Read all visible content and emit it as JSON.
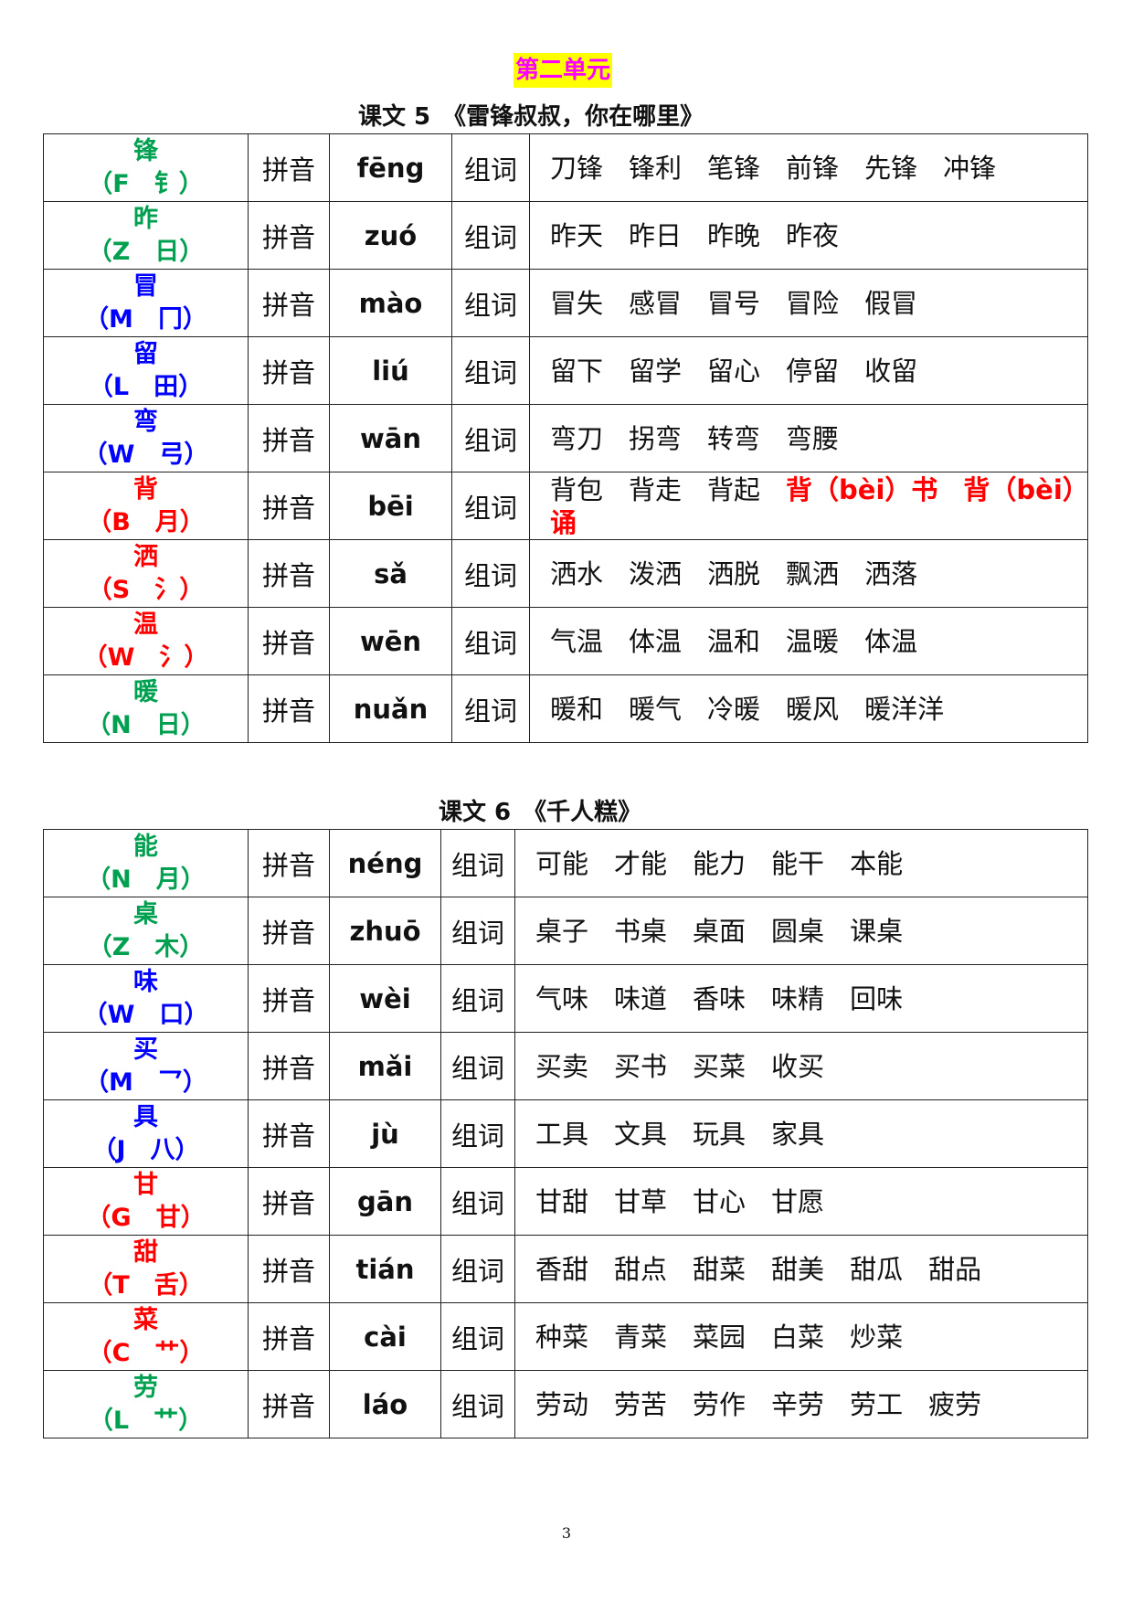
{
  "unit_title": "第二单元",
  "lessons": [
    {
      "title": "课文 5　《雷锋叔叔，你在哪里》",
      "rows": [
        {
          "char": "锋",
          "hint": "（F　钅）",
          "color": "#00a050",
          "pinyin_label": "拼音",
          "pinyin": "fēng",
          "words_label": "组词",
          "words": [
            "刀锋",
            "锋利",
            "笔锋",
            "前锋",
            "先锋",
            "冲锋"
          ]
        },
        {
          "char": "昨",
          "hint": "（Z　日）",
          "color": "#00a050",
          "pinyin_label": "拼音",
          "pinyin": "zuó",
          "words_label": "组词",
          "words": [
            "昨天",
            "昨日",
            "昨晚",
            "昨夜"
          ]
        },
        {
          "char": "冒",
          "hint": "（M　冂）",
          "color": "#0000ff",
          "pinyin_label": "拼音",
          "pinyin": "mào",
          "words_label": "组词",
          "words": [
            "冒失",
            "感冒",
            "冒号",
            "冒险",
            "假冒"
          ]
        },
        {
          "char": "留",
          "hint": "（L　田）",
          "color": "#0000ff",
          "pinyin_label": "拼音",
          "pinyin": "liú",
          "words_label": "组词",
          "words": [
            "留下",
            "留学",
            "留心",
            "停留",
            "收留"
          ]
        },
        {
          "char": "弯",
          "hint": "（W　弓）",
          "color": "#0000ff",
          "pinyin_label": "拼音",
          "pinyin": "wān",
          "words_label": "组词",
          "words": [
            "弯刀",
            "拐弯",
            "转弯",
            "弯腰"
          ]
        },
        {
          "char": "背",
          "hint": "（B　月）",
          "color": "#ff0000",
          "pinyin_label": "拼音",
          "pinyin": "bēi",
          "words_label": "组词",
          "words": [
            "背包",
            "背走",
            "背起"
          ],
          "extra_words": [
            "背（bèi）书",
            "背（bèi）诵"
          ]
        },
        {
          "char": "洒",
          "hint": "（S　氵）",
          "color": "#ff0000",
          "pinyin_label": "拼音",
          "pinyin": "sǎ",
          "words_label": "组词",
          "words": [
            "洒水",
            "泼洒",
            "洒脱",
            "飘洒",
            "洒落"
          ]
        },
        {
          "char": "温",
          "hint": "（W　氵）",
          "color": "#ff0000",
          "pinyin_label": "拼音",
          "pinyin": "wēn",
          "words_label": "组词",
          "words": [
            "气温",
            "体温",
            "温和",
            "温暖",
            "体温"
          ]
        },
        {
          "char": "暖",
          "hint": "（N　日）",
          "color": "#00a050",
          "pinyin_label": "拼音",
          "pinyin": "nuǎn",
          "words_label": "组词",
          "words": [
            "暖和",
            "暖气",
            "冷暖",
            "暖风",
            "暖洋洋"
          ]
        }
      ]
    },
    {
      "title": "课文 6　《千人糕》",
      "rows": [
        {
          "char": "能",
          "hint": "（N　月）",
          "color": "#00a050",
          "pinyin_label": "拼音",
          "pinyin": "néng",
          "words_label": "组词",
          "words": [
            "可能",
            "才能",
            "能力",
            "能干",
            "本能"
          ]
        },
        {
          "char": "桌",
          "hint": "（Z　木）",
          "color": "#00a050",
          "pinyin_label": "拼音",
          "pinyin": "zhuō",
          "words_label": "组词",
          "words": [
            "桌子",
            "书桌",
            "桌面",
            "圆桌",
            "课桌"
          ]
        },
        {
          "char": "味",
          "hint": "（W　口）",
          "color": "#0000ff",
          "pinyin_label": "拼音",
          "pinyin": "wèi",
          "words_label": "组词",
          "words": [
            "气味",
            "味道",
            "香味",
            "味精",
            "回味"
          ]
        },
        {
          "char": "买",
          "hint": "（M　乛）",
          "color": "#0000ff",
          "pinyin_label": "拼音",
          "pinyin": "mǎi",
          "words_label": "组词",
          "words": [
            "买卖",
            "买书",
            "买菜",
            "收买"
          ]
        },
        {
          "char": "具",
          "hint": "（J　八）",
          "color": "#0000ff",
          "pinyin_label": "拼音",
          "pinyin": "jù",
          "words_label": "组词",
          "words": [
            "工具",
            "文具",
            "玩具",
            "家具"
          ]
        },
        {
          "char": "甘",
          "hint": "（G　甘）",
          "color": "#ff0000",
          "pinyin_label": "拼音",
          "pinyin": "gān",
          "words_label": "组词",
          "words": [
            "甘甜",
            "甘草",
            "甘心",
            "甘愿"
          ]
        },
        {
          "char": "甜",
          "hint": "（T　舌）",
          "color": "#ff0000",
          "pinyin_label": "拼音",
          "pinyin": "tián",
          "words_label": "组词",
          "words": [
            "香甜",
            "甜点",
            "甜菜",
            "甜美",
            "甜瓜",
            "甜品"
          ]
        },
        {
          "char": "菜",
          "hint": "（C　艹）",
          "color": "#ff0000",
          "pinyin_label": "拼音",
          "pinyin": "cài",
          "words_label": "组词",
          "words": [
            "种菜",
            "青菜",
            "菜园",
            "白菜",
            "炒菜"
          ]
        },
        {
          "char": "劳",
          "hint": "（L　艹）",
          "color": "#00a050",
          "pinyin_label": "拼音",
          "pinyin": "láo",
          "words_label": "组词",
          "words": [
            "劳动",
            "劳苦",
            "劳作",
            "辛劳",
            "劳工",
            "疲劳"
          ]
        }
      ]
    }
  ],
  "page_number": "3"
}
